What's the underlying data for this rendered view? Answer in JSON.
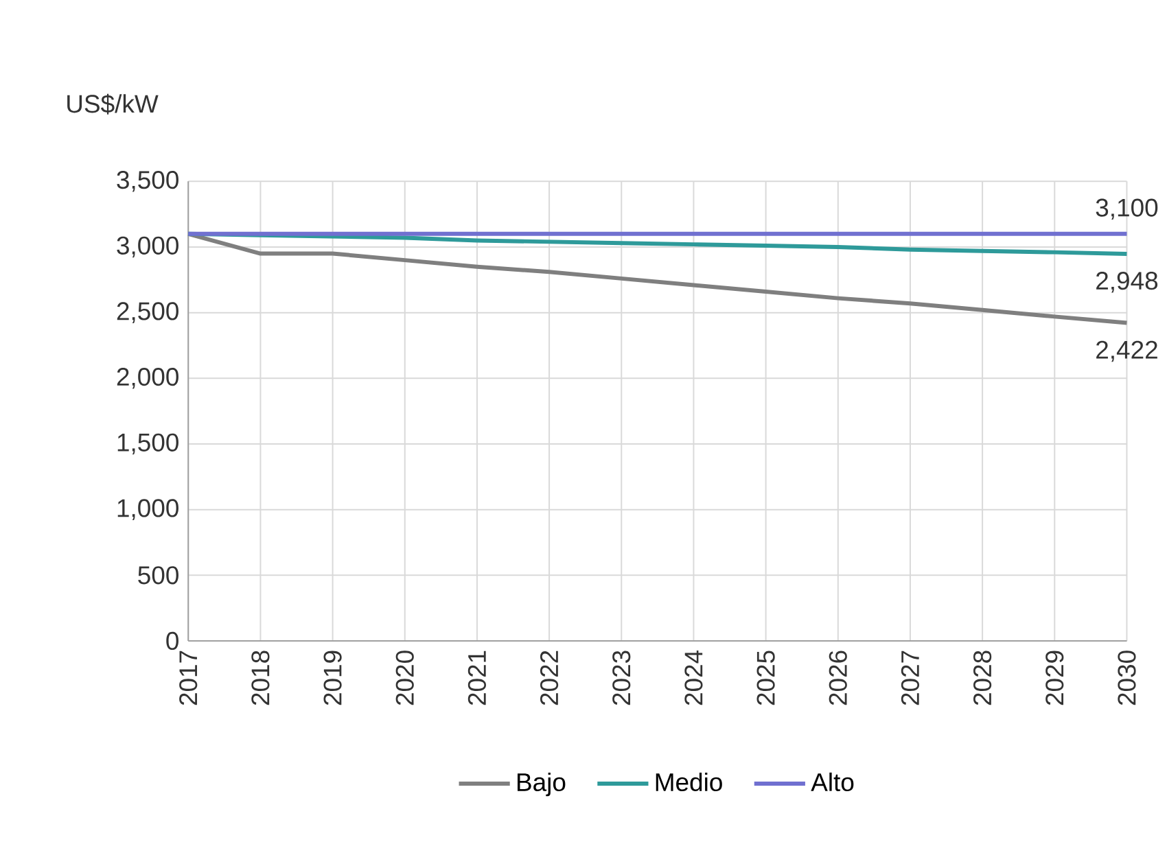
{
  "chart_data": {
    "type": "line",
    "ylabel": "US$/kW",
    "x": [
      2017,
      2018,
      2019,
      2020,
      2021,
      2022,
      2023,
      2024,
      2025,
      2026,
      2027,
      2028,
      2029,
      2030
    ],
    "series": [
      {
        "name": "Bajo",
        "color": "#7f7f7f",
        "values": [
          3100,
          2950,
          2950,
          2900,
          2850,
          2810,
          2760,
          2710,
          2660,
          2610,
          2570,
          2520,
          2470,
          2422
        ],
        "value_labels": [
          null,
          null,
          null,
          null,
          null,
          null,
          null,
          null,
          null,
          null,
          null,
          null,
          null,
          "2,422"
        ]
      },
      {
        "name": "Medio",
        "color": "#2e9a9a",
        "values": [
          3100,
          3090,
          3080,
          3070,
          3050,
          3040,
          3030,
          3020,
          3010,
          3000,
          2980,
          2970,
          2960,
          2948
        ],
        "value_labels": [
          null,
          null,
          null,
          null,
          null,
          null,
          null,
          null,
          null,
          null,
          null,
          null,
          null,
          "2,948"
        ]
      },
      {
        "name": "Alto",
        "color": "#7070d0",
        "values": [
          3100,
          3100,
          3100,
          3100,
          3100,
          3100,
          3100,
          3100,
          3100,
          3100,
          3100,
          3100,
          3100,
          3100
        ],
        "value_labels": [
          null,
          null,
          null,
          null,
          null,
          null,
          null,
          null,
          null,
          null,
          null,
          null,
          null,
          "3,100"
        ]
      }
    ],
    "xlim": [
      2017,
      2030
    ],
    "xticks": [
      2017,
      2018,
      2019,
      2020,
      2021,
      2022,
      2023,
      2024,
      2025,
      2026,
      2027,
      2028,
      2029,
      2030
    ],
    "ylim": [
      0,
      3500
    ],
    "yticks": [
      {
        "value": 0,
        "label": "0"
      },
      {
        "value": 500,
        "label": "500"
      },
      {
        "value": 1000,
        "label": "1,000"
      },
      {
        "value": 1500,
        "label": "1,500"
      },
      {
        "value": 2000,
        "label": "2,000"
      },
      {
        "value": 2500,
        "label": "2,500"
      },
      {
        "value": 3000,
        "label": "3,000"
      },
      {
        "value": 3500,
        "label": "3,500"
      }
    ],
    "grid": true,
    "legend": "bottom"
  }
}
